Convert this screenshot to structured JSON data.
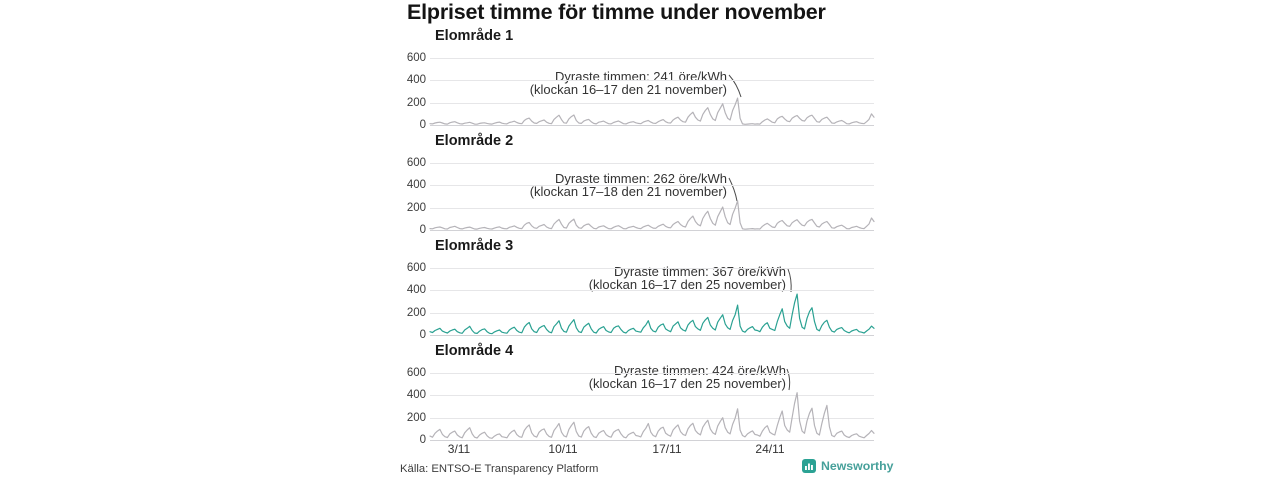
{
  "title": "Elpriset timme för timme under november",
  "source": "Källa: ENTSO-E Transparency Platform",
  "brand": {
    "name": "Newsworthy",
    "color": "#2ba294",
    "text_color": "#46a09a",
    "icon": "bar-chart-icon"
  },
  "colors": {
    "line_default": "#b5b3b8",
    "line_highlight": "#2aa192",
    "grid": "#e6e6e8",
    "baseline": "#d2d2d6",
    "pointer": "#4a4a4a",
    "annotation_text": "#333333"
  },
  "y_ticks": [
    600,
    400,
    200,
    0
  ],
  "x_ticks": [
    "3/11",
    "10/11",
    "17/11",
    "24/11"
  ],
  "chart_data": [
    {
      "type": "line",
      "title": "Elområde 1",
      "unit": "öre/kWh",
      "ylim": [
        0,
        600
      ],
      "x_range": "1 november – 30 november, hourly",
      "highlight": false,
      "peak": {
        "value": 241,
        "hours": "16–17",
        "date": "21 november"
      },
      "annotation": {
        "line1": "Dyraste timmen: 241 öre/kWh",
        "line2": "(klockan 16–17 den 21 november)"
      },
      "values": [
        12,
        10,
        18,
        22,
        25,
        18,
        10,
        8,
        20,
        26,
        30,
        20,
        12,
        9,
        16,
        20,
        24,
        16,
        8,
        7,
        14,
        18,
        20,
        14,
        10,
        8,
        16,
        22,
        26,
        16,
        12,
        10,
        22,
        28,
        34,
        22,
        14,
        12,
        40,
        55,
        62,
        35,
        18,
        14,
        30,
        38,
        45,
        25,
        15,
        12,
        50,
        70,
        88,
        48,
        20,
        16,
        55,
        75,
        90,
        40,
        18,
        14,
        35,
        45,
        50,
        30,
        14,
        10,
        25,
        30,
        35,
        22,
        12,
        10,
        22,
        30,
        36,
        24,
        12,
        10,
        20,
        26,
        30,
        20,
        14,
        12,
        26,
        34,
        40,
        26,
        16,
        14,
        30,
        40,
        48,
        30,
        20,
        18,
        45,
        60,
        70,
        45,
        30,
        25,
        70,
        95,
        115,
        70,
        45,
        35,
        95,
        130,
        155,
        95,
        55,
        40,
        110,
        150,
        190,
        110,
        60,
        45,
        130,
        180,
        241,
        60,
        10,
        6,
        8,
        10,
        12,
        8,
        10,
        8,
        30,
        45,
        55,
        40,
        25,
        20,
        55,
        70,
        78,
        55,
        35,
        30,
        60,
        75,
        85,
        60,
        40,
        35,
        65,
        80,
        88,
        58,
        30,
        25,
        50,
        62,
        70,
        45,
        18,
        15,
        28,
        35,
        40,
        28,
        12,
        10,
        20,
        26,
        30,
        20,
        14,
        12,
        30,
        50,
        100,
        70
      ]
    },
    {
      "type": "line",
      "title": "Elområde 2",
      "unit": "öre/kWh",
      "ylim": [
        0,
        600
      ],
      "x_range": "1 november – 30 november, hourly",
      "highlight": false,
      "peak": {
        "value": 262,
        "hours": "17–18",
        "date": "21 november"
      },
      "annotation": {
        "line1": "Dyraste timmen: 262 öre/kWh",
        "line2": "(klockan 17–18 den 21 november)"
      },
      "values": [
        13,
        11,
        20,
        24,
        27,
        20,
        11,
        9,
        22,
        28,
        33,
        22,
        13,
        10,
        17,
        22,
        26,
        17,
        9,
        8,
        15,
        20,
        22,
        15,
        11,
        9,
        17,
        24,
        28,
        17,
        13,
        11,
        24,
        30,
        37,
        24,
        15,
        13,
        43,
        60,
        67,
        38,
        20,
        15,
        33,
        41,
        49,
        27,
        16,
        13,
        54,
        76,
        95,
        52,
        22,
        17,
        60,
        81,
        98,
        43,
        20,
        15,
        38,
        49,
        54,
        33,
        15,
        11,
        27,
        33,
        38,
        24,
        13,
        11,
        24,
        33,
        39,
        26,
        13,
        11,
        22,
        28,
        33,
        22,
        15,
        13,
        28,
        37,
        43,
        28,
        17,
        15,
        33,
        43,
        52,
        33,
        22,
        20,
        49,
        65,
        76,
        49,
        33,
        27,
        76,
        103,
        125,
        76,
        49,
        38,
        103,
        141,
        168,
        103,
        60,
        43,
        119,
        163,
        206,
        119,
        65,
        49,
        141,
        195,
        262,
        65,
        11,
        7,
        9,
        11,
        13,
        9,
        11,
        9,
        33,
        49,
        60,
        43,
        27,
        22,
        60,
        76,
        85,
        60,
        38,
        33,
        65,
        81,
        92,
        65,
        43,
        38,
        70,
        87,
        95,
        63,
        33,
        27,
        54,
        67,
        76,
        49,
        20,
        16,
        30,
        38,
        43,
        30,
        13,
        11,
        22,
        28,
        33,
        22,
        15,
        13,
        33,
        54,
        108,
        76
      ]
    },
    {
      "type": "line",
      "title": "Elområde 3",
      "unit": "öre/kWh",
      "ylim": [
        0,
        600
      ],
      "x_range": "1 november – 30 november, hourly",
      "highlight": true,
      "peak": {
        "value": 367,
        "hours": "16–17",
        "date": "25 november"
      },
      "annotation": {
        "line1": "Dyraste timmen: 367 öre/kWh",
        "line2": "(klockan 16–17 den 25 november)"
      },
      "values": [
        30,
        22,
        40,
        50,
        60,
        35,
        25,
        18,
        35,
        45,
        52,
        30,
        20,
        15,
        45,
        60,
        78,
        40,
        18,
        14,
        35,
        48,
        55,
        30,
        15,
        12,
        28,
        38,
        45,
        25,
        20,
        16,
        45,
        60,
        70,
        40,
        25,
        20,
        70,
        95,
        112,
        55,
        30,
        22,
        60,
        75,
        85,
        50,
        28,
        20,
        75,
        100,
        128,
        60,
        32,
        25,
        80,
        110,
        138,
        65,
        30,
        22,
        70,
        90,
        105,
        55,
        25,
        18,
        50,
        65,
        75,
        40,
        28,
        22,
        60,
        75,
        82,
        48,
        25,
        18,
        40,
        52,
        60,
        35,
        30,
        25,
        65,
        90,
        128,
        60,
        35,
        28,
        70,
        90,
        100,
        55,
        40,
        30,
        80,
        100,
        118,
        65,
        45,
        35,
        90,
        115,
        132,
        75,
        55,
        42,
        105,
        135,
        158,
        90,
        60,
        45,
        115,
        150,
        182,
        100,
        65,
        50,
        130,
        180,
        268,
        80,
        35,
        25,
        50,
        65,
        75,
        45,
        40,
        30,
        70,
        95,
        110,
        60,
        50,
        40,
        120,
        180,
        235,
        120,
        80,
        60,
        180,
        290,
        367,
        150,
        70,
        55,
        150,
        210,
        245,
        120,
        50,
        38,
        85,
        115,
        132,
        70,
        35,
        26,
        50,
        60,
        66,
        40,
        28,
        20,
        36,
        44,
        50,
        30,
        25,
        18,
        36,
        52,
        80,
        60
      ]
    },
    {
      "type": "line",
      "title": "Elområde 4",
      "unit": "öre/kWh",
      "ylim": [
        0,
        600
      ],
      "x_range": "1 november – 30 november, hourly",
      "highlight": false,
      "peak": {
        "value": 424,
        "hours": "16–17",
        "date": "25 november"
      },
      "annotation": {
        "line1": "Dyraste timmen: 424 öre/kWh",
        "line2": "(klockan 16–17 den 25 november)"
      },
      "values": [
        35,
        25,
        60,
        80,
        95,
        50,
        30,
        22,
        55,
        70,
        80,
        45,
        28,
        20,
        65,
        90,
        110,
        55,
        25,
        18,
        45,
        60,
        70,
        38,
        20,
        15,
        35,
        48,
        55,
        30,
        25,
        20,
        55,
        75,
        88,
        48,
        30,
        24,
        85,
        115,
        135,
        65,
        35,
        26,
        70,
        90,
        100,
        55,
        32,
        24,
        85,
        115,
        148,
        70,
        38,
        28,
        95,
        130,
        160,
        75,
        35,
        26,
        80,
        105,
        120,
        62,
        30,
        22,
        60,
        75,
        85,
        48,
        32,
        25,
        70,
        85,
        95,
        55,
        28,
        20,
        48,
        60,
        70,
        40,
        35,
        28,
        75,
        105,
        148,
        70,
        40,
        30,
        80,
        105,
        115,
        62,
        45,
        34,
        90,
        115,
        135,
        75,
        50,
        40,
        100,
        130,
        150,
        85,
        60,
        46,
        115,
        150,
        178,
        100,
        65,
        50,
        125,
        165,
        200,
        110,
        70,
        55,
        140,
        195,
        280,
        90,
        40,
        28,
        55,
        70,
        82,
        50,
        45,
        34,
        80,
        110,
        128,
        70,
        55,
        45,
        130,
        200,
        260,
        130,
        90,
        70,
        200,
        330,
        424,
        170,
        80,
        60,
        170,
        240,
        285,
        130,
        60,
        45,
        150,
        240,
        310,
        120,
        40,
        30,
        60,
        72,
        80,
        45,
        30,
        22,
        40,
        50,
        56,
        34,
        26,
        20,
        40,
        58,
        85,
        60
      ]
    }
  ]
}
